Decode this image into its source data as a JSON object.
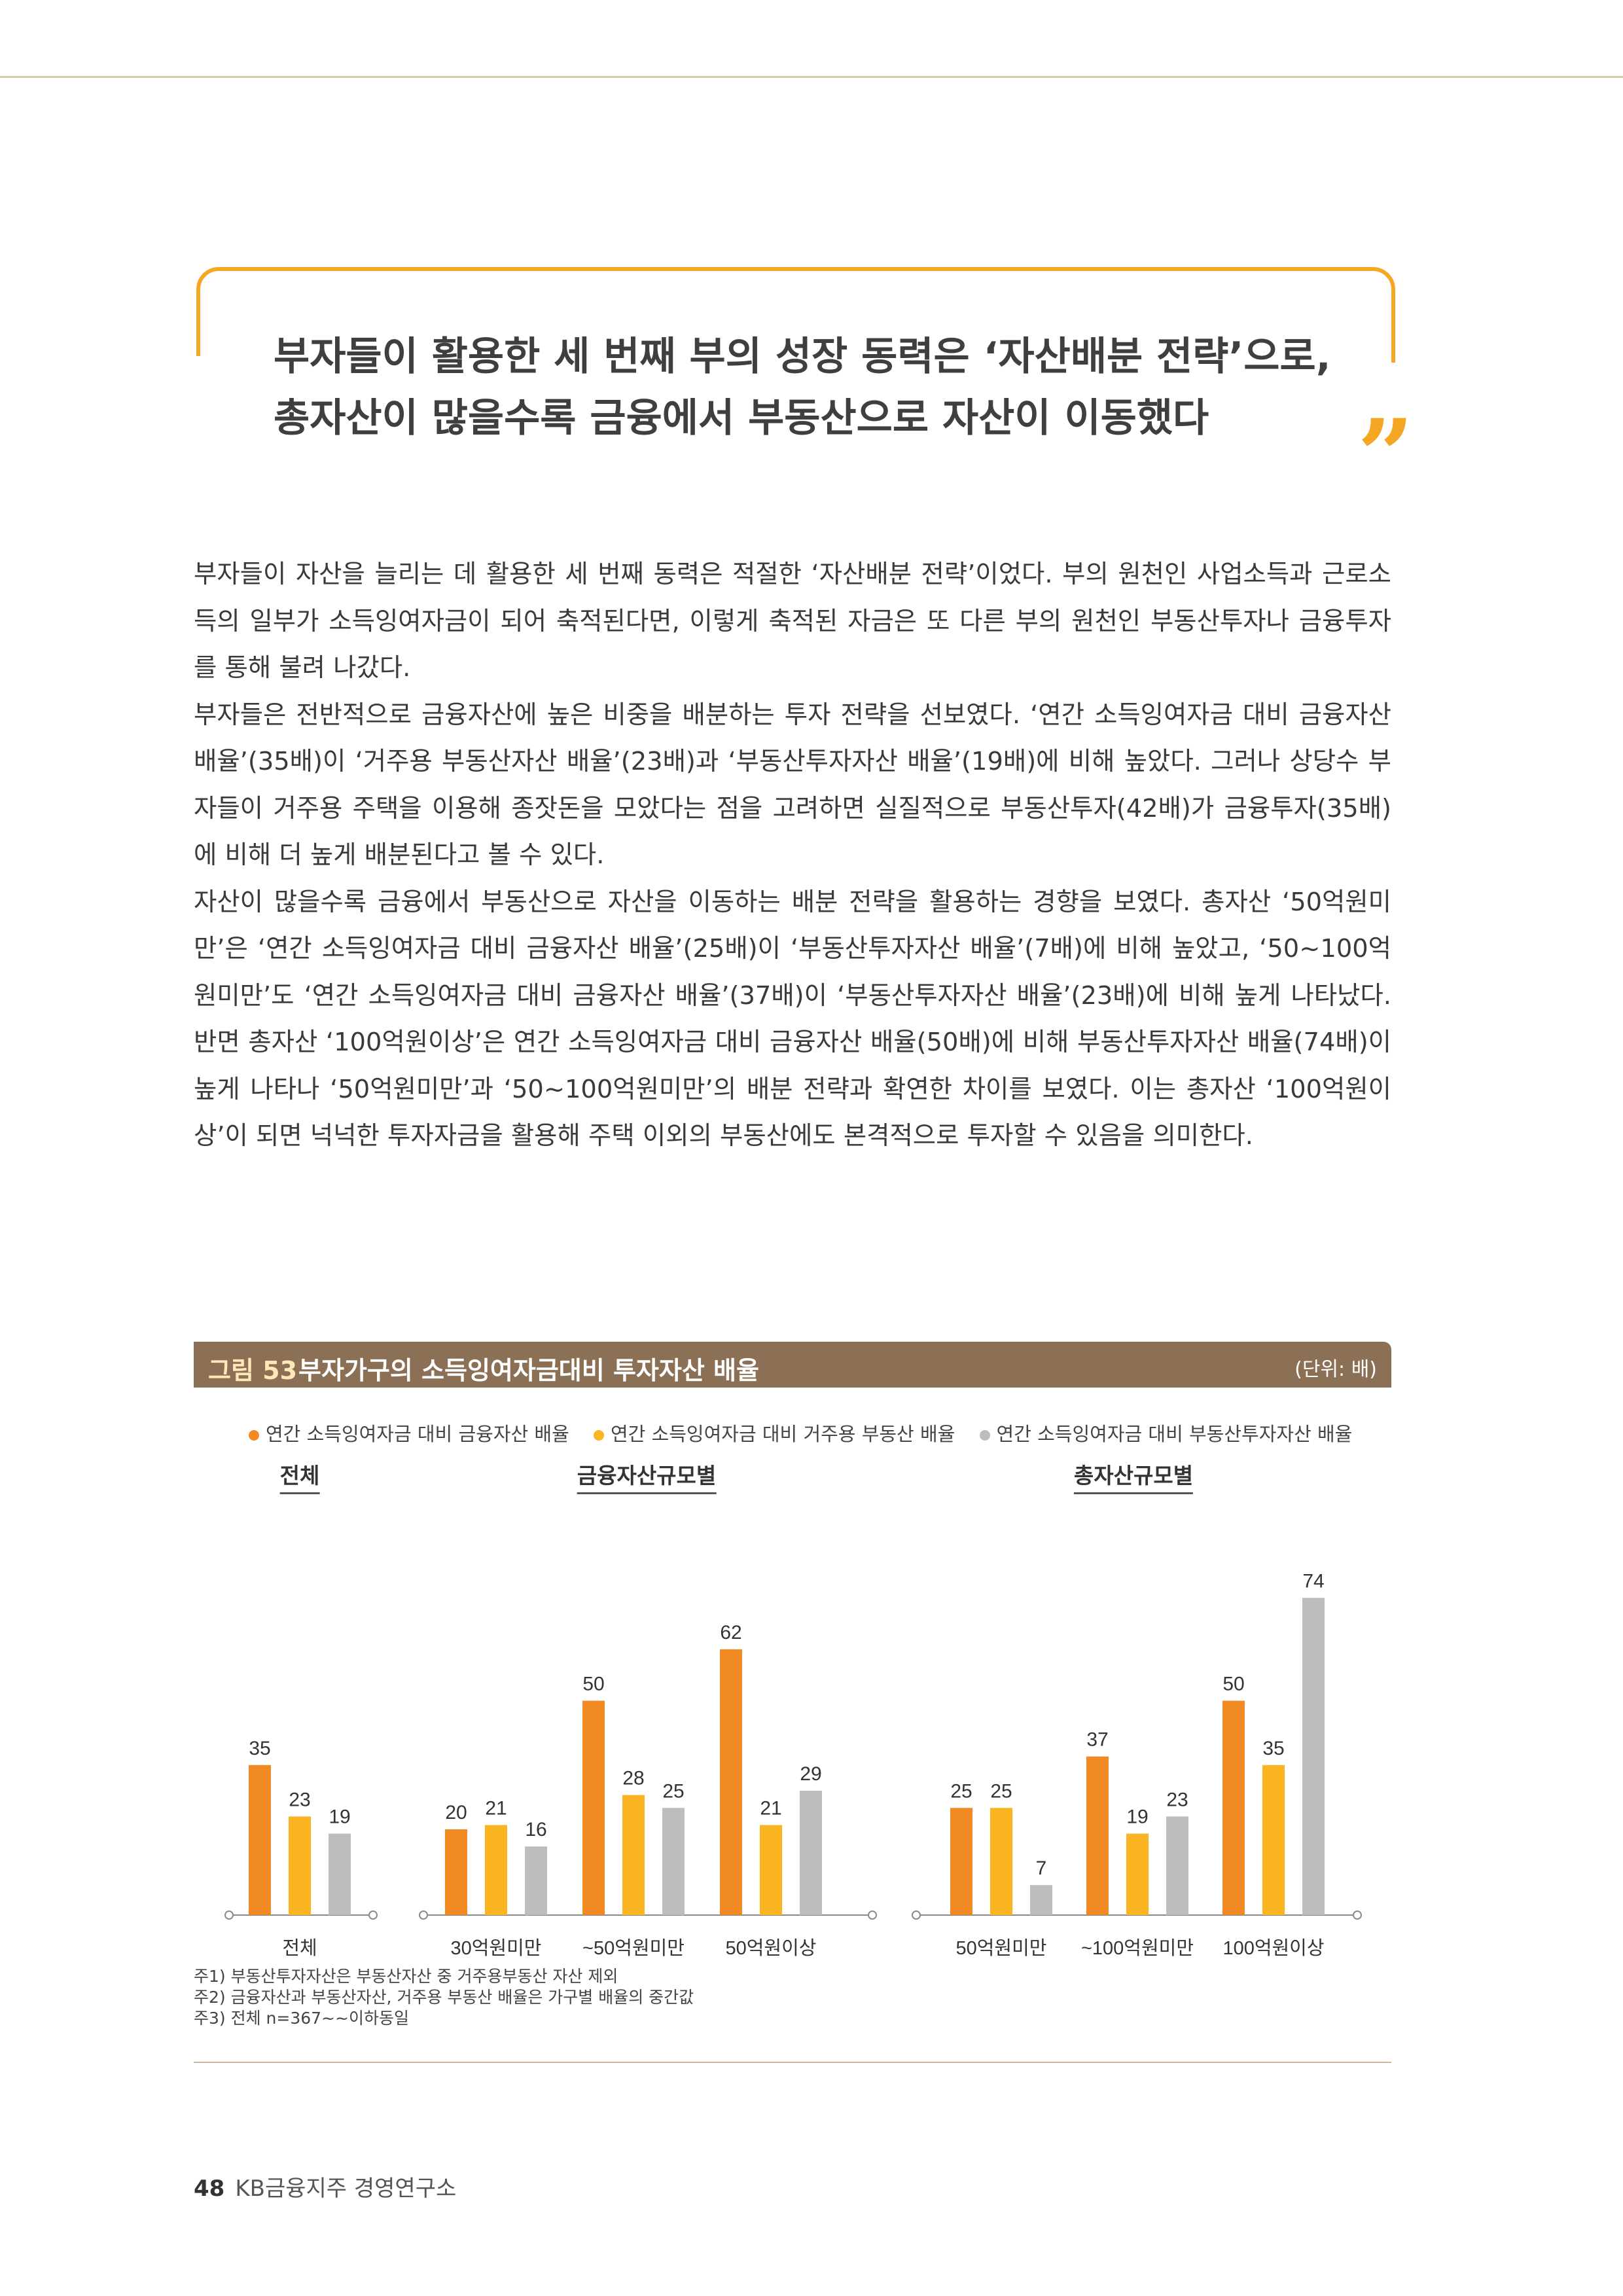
{
  "headline": {
    "line1": "부자들이 활용한 세 번째 부의 성장 동력은 ‘자산배분 전략’으로,",
    "line2": "총자산이 많을수록 금융에서 부동산으로 자산이 이동했다"
  },
  "quote_icon": "closing-quote-icon",
  "paragraphs": [
    "부자들이 자산을 늘리는 데 활용한 세 번째 동력은 적절한 ‘자산배분 전략’이었다. 부의 원천인 사업소득과 근로소득의 일부가 소득잉여자금이 되어 축적된다면, 이렇게 축적된 자금은 또 다른 부의 원천인 부동산투자나 금융투자를 통해 불려 나갔다.",
    "부자들은 전반적으로 금융자산에 높은 비중을 배분하는 투자 전략을 선보였다. ‘연간 소득잉여자금 대비 금융자산 배율’(35배)이 ‘거주용 부동산자산 배율’(23배)과 ‘부동산투자자산 배율’(19배)에 비해 높았다. 그러나 상당수 부자들이 거주용 주택을 이용해 종잣돈을 모았다는 점을 고려하면 실질적으로 부동산투자(42배)가 금융투자(35배)에 비해 더 높게 배분된다고 볼 수 있다.",
    "자산이 많을수록 금융에서 부동산으로 자산을 이동하는 배분 전략을 활용하는 경향을 보였다. 총자산 ‘50억원미만’은 ‘연간 소득잉여자금 대비 금융자산 배율’(25배)이 ‘부동산투자자산 배율’(7배)에 비해 높았고, ‘50~100억원미만’도 ‘연간 소득잉여자금 대비 금융자산 배율’(37배)이 ‘부동산투자자산 배율’(23배)에 비해 높게 나타났다. 반면 총자산 ‘100억원이상’은 연간 소득잉여자금 대비 금융자산 배율(50배)에 비해 부동산투자자산 배율(74배)이 높게 나타나 ‘50억원미만’과 ‘50~100억원미만’의 배분 전략과 확연한 차이를 보였다. 이는 총자산 ‘100억원이상’이 되면 넉넉한 투자자금을 활용해 주택 이외의 부동산에도 본격적으로 투자할 수 있음을 의미한다."
  ],
  "figure": {
    "number": "그림 53",
    "title": "부자가구의 소득잉여자금대비 투자자산 배율",
    "unit": "(단위: 배)"
  },
  "chart_data": {
    "type": "bar",
    "series": [
      {
        "name": "연간 소득잉여자금 대비 금융자산 배율",
        "color": "#f28a24"
      },
      {
        "name": "연간 소득잉여자금 대비 거주용 부동산 배율",
        "color": "#fbb422"
      },
      {
        "name": "연간 소득잉여자금 대비 부동산투자자산 배율",
        "color": "#bcbdbf"
      }
    ],
    "panels": [
      {
        "title": "전체",
        "categories": [
          "전체"
        ],
        "values": [
          [
            35
          ],
          [
            23
          ],
          [
            19
          ]
        ]
      },
      {
        "title": "금융자산규모별",
        "categories": [
          "30억원미만",
          "~50억원미만",
          "50억원이상"
        ],
        "values": [
          [
            20,
            50,
            62
          ],
          [
            21,
            28,
            21
          ],
          [
            16,
            25,
            29
          ]
        ]
      },
      {
        "title": "총자산규모별",
        "categories": [
          "50억원미만",
          "~100억원미만",
          "100억원이상"
        ],
        "values": [
          [
            25,
            37,
            50
          ],
          [
            25,
            19,
            35
          ],
          [
            7,
            23,
            74
          ]
        ]
      }
    ]
  },
  "notes": [
    "주1) 부동산투자자산은 부동산자산 중 거주용부동산 자산 제외",
    "주2) 금융자산과 부동산자산, 거주용 부동산 배율은 가구별 배율의 중간값",
    "주3) 전체 n=367~~이하동일"
  ],
  "footer": {
    "page_number": "48",
    "publisher": "KB금융지주 경영연구소"
  }
}
